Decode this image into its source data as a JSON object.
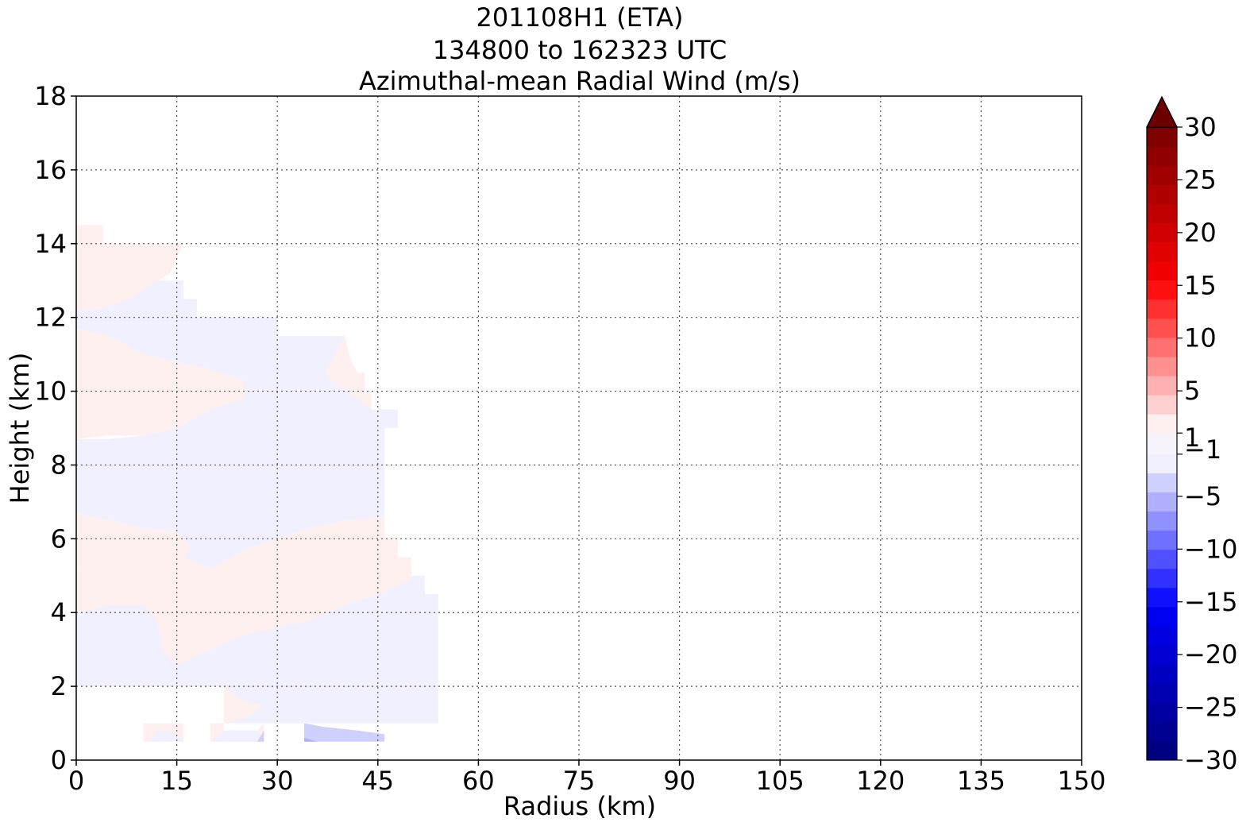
{
  "chart_data": {
    "type": "heatmap",
    "title_lines": [
      "201108H1 (ETA)",
      "134800 to 162323 UTC",
      "Azimuthal-mean Radial Wind (m/s)"
    ],
    "xlabel": "Radius (km)",
    "ylabel": "Height (km)",
    "xlim": [
      0,
      150
    ],
    "ylim": [
      0,
      18
    ],
    "xticks": [
      0,
      15,
      30,
      45,
      60,
      75,
      90,
      105,
      120,
      135,
      150
    ],
    "yticks": [
      0,
      2,
      4,
      6,
      8,
      10,
      12,
      14,
      16,
      18
    ],
    "grid": true,
    "colorbar": {
      "ticks": [
        30,
        25,
        20,
        15,
        10,
        5,
        1,
        -1,
        -5,
        -10,
        -15,
        -20,
        -25,
        -30
      ],
      "vmin": -30,
      "vmax": 30,
      "extend": "max",
      "levels_positive": [
        1,
        2,
        3,
        4,
        5,
        6,
        7,
        8,
        9,
        10,
        11,
        12,
        13,
        14,
        15,
        16,
        17,
        18,
        19,
        20,
        21,
        22,
        23,
        24,
        25,
        26,
        27,
        28,
        29,
        30
      ],
      "colors_positive": [
        "#fff0f0",
        "#ffd0d0",
        "#ffb0b0",
        "#ff9090",
        "#ff7070",
        "#ff5050",
        "#ff3030",
        "#ff1010",
        "#f00000",
        "#e00000",
        "#d00000",
        "#c00000",
        "#b00000",
        "#a00000",
        "#900000",
        "#800000"
      ],
      "colors_negative": [
        "#f0f0ff",
        "#d0d0ff",
        "#b0b0ff",
        "#9090ff",
        "#7070ff",
        "#5050ff",
        "#3030ff",
        "#1010ff",
        "#0000f0",
        "#0000e0",
        "#0000d0",
        "#0000c0",
        "#0000b0",
        "#0000a0",
        "#000090",
        "#000080"
      ]
    },
    "regions": [
      {
        "sign": "positive",
        "value": 0.5,
        "points": [
          [
            0,
            12.2
          ],
          [
            3,
            12.2
          ],
          [
            8,
            12.5
          ],
          [
            14,
            13.2
          ],
          [
            16,
            14.0
          ],
          [
            11,
            14.0
          ],
          [
            11,
            14.0
          ],
          [
            4,
            14.0
          ],
          [
            4,
            14.5
          ],
          [
            0,
            14.5
          ]
        ]
      },
      {
        "sign": "negative",
        "value": -0.5,
        "points": [
          [
            0,
            11.7
          ],
          [
            5,
            11.5
          ],
          [
            10,
            11.0
          ],
          [
            15,
            10.8
          ],
          [
            20,
            10.6
          ],
          [
            25,
            10.3
          ],
          [
            25,
            9.8
          ],
          [
            20,
            9.5
          ],
          [
            15,
            9.0
          ],
          [
            10,
            8.8
          ],
          [
            5,
            8.7
          ],
          [
            0,
            8.7
          ],
          [
            0,
            6.7
          ],
          [
            5,
            6.5
          ],
          [
            10,
            6.3
          ],
          [
            15,
            6.2
          ],
          [
            17,
            5.8
          ],
          [
            16,
            5.5
          ],
          [
            20,
            5.2
          ],
          [
            25,
            5.7
          ],
          [
            30,
            6.0
          ],
          [
            35,
            6.3
          ],
          [
            40,
            6.5
          ],
          [
            46,
            6.6
          ],
          [
            46,
            7.0
          ],
          [
            46,
            8.0
          ],
          [
            46,
            9.0
          ],
          [
            48,
            9.0
          ],
          [
            48,
            9.5
          ],
          [
            44,
            9.5
          ],
          [
            44,
            10.0
          ],
          [
            43,
            10.0
          ],
          [
            43,
            10.5
          ],
          [
            42,
            10.5
          ],
          [
            41,
            10.8
          ],
          [
            40,
            11.5
          ],
          [
            30,
            11.5
          ],
          [
            30,
            12.0
          ],
          [
            18,
            12.0
          ],
          [
            18,
            12.5
          ],
          [
            16,
            12.5
          ],
          [
            16,
            13.0
          ],
          [
            12,
            13.0
          ],
          [
            8,
            12.5
          ],
          [
            3,
            12.2
          ],
          [
            0,
            12.2
          ]
        ]
      },
      {
        "sign": "positive",
        "value": 0.5,
        "points": [
          [
            0,
            8.7
          ],
          [
            5,
            8.8
          ],
          [
            10,
            8.8
          ],
          [
            15,
            9.0
          ],
          [
            20,
            9.5
          ],
          [
            25,
            9.8
          ],
          [
            25,
            10.3
          ],
          [
            20,
            10.6
          ],
          [
            15,
            10.8
          ],
          [
            10,
            11.0
          ],
          [
            5,
            11.5
          ],
          [
            0,
            11.7
          ]
        ]
      },
      {
        "sign": "positive",
        "value": 0.5,
        "points": [
          [
            40,
            11.5
          ],
          [
            41,
            10.8
          ],
          [
            42,
            10.5
          ],
          [
            43,
            10.5
          ],
          [
            43,
            10.0
          ],
          [
            44,
            10.0
          ],
          [
            44,
            9.5
          ],
          [
            44,
            9.5
          ],
          [
            42,
            9.8
          ],
          [
            40,
            10.0
          ],
          [
            37,
            10.5
          ]
        ]
      },
      {
        "sign": "positive",
        "value": 0.5,
        "points": [
          [
            0,
            5.3
          ],
          [
            3,
            5.1
          ],
          [
            6,
            5.3
          ],
          [
            9,
            4.9
          ],
          [
            12,
            5.0
          ],
          [
            15,
            5.0
          ],
          [
            17,
            5.8
          ],
          [
            15,
            6.2
          ],
          [
            10,
            6.3
          ],
          [
            5,
            6.5
          ],
          [
            0,
            6.7
          ]
        ]
      },
      {
        "sign": "positive",
        "value": 0.5,
        "points": [
          [
            0,
            4.0
          ],
          [
            5,
            4.2
          ],
          [
            10,
            4.2
          ],
          [
            12,
            3.8
          ],
          [
            13,
            2.9
          ],
          [
            15,
            2.6
          ],
          [
            20,
            3.0
          ],
          [
            25,
            3.4
          ],
          [
            30,
            3.6
          ],
          [
            35,
            3.8
          ],
          [
            40,
            4.2
          ],
          [
            45,
            4.5
          ],
          [
            50,
            4.9
          ],
          [
            50,
            5.5
          ],
          [
            48,
            5.5
          ],
          [
            48,
            6.0
          ],
          [
            46,
            6.0
          ],
          [
            46,
            6.6
          ],
          [
            40,
            6.5
          ],
          [
            35,
            6.3
          ],
          [
            30,
            6.0
          ],
          [
            25,
            5.7
          ],
          [
            20,
            5.2
          ],
          [
            16,
            5.5
          ],
          [
            17,
            5.8
          ],
          [
            15,
            5.0
          ],
          [
            12,
            5.0
          ],
          [
            9,
            4.9
          ],
          [
            6,
            5.3
          ],
          [
            3,
            5.1
          ],
          [
            0,
            5.3
          ]
        ]
      },
      {
        "sign": "negative",
        "value": -0.5,
        "points": [
          [
            0,
            2.0
          ],
          [
            15,
            2.0
          ],
          [
            15,
            2.0
          ],
          [
            22,
            2.0
          ],
          [
            22,
            1.0
          ],
          [
            54,
            1.0
          ],
          [
            54,
            4.5
          ],
          [
            52,
            4.5
          ],
          [
            52,
            5.0
          ],
          [
            50,
            5.0
          ],
          [
            50,
            4.9
          ],
          [
            45,
            4.5
          ],
          [
            40,
            4.2
          ],
          [
            35,
            3.8
          ],
          [
            30,
            3.6
          ],
          [
            25,
            3.4
          ],
          [
            20,
            3.0
          ],
          [
            15,
            2.6
          ],
          [
            13,
            2.9
          ],
          [
            12,
            3.8
          ],
          [
            10,
            4.2
          ],
          [
            5,
            4.2
          ],
          [
            0,
            4.0
          ]
        ]
      },
      {
        "sign": "positive",
        "value": 0.5,
        "points": [
          [
            22,
            2.0
          ],
          [
            25,
            1.6
          ],
          [
            28,
            1.5
          ],
          [
            26,
            1.2
          ],
          [
            22,
            1.0
          ]
        ]
      },
      {
        "sign": "positive",
        "value": 0.5,
        "points": [
          [
            10,
            0.5
          ],
          [
            10,
            1.0
          ],
          [
            16,
            1.0
          ],
          [
            16,
            0.5
          ]
        ]
      },
      {
        "sign": "negative",
        "value": -0.5,
        "points": [
          [
            11,
            0.5
          ],
          [
            12,
            0.8
          ],
          [
            14,
            0.8
          ],
          [
            16,
            0.5
          ]
        ]
      },
      {
        "sign": "positive",
        "value": 0.5,
        "points": [
          [
            20,
            0.5
          ],
          [
            20,
            1.0
          ],
          [
            22,
            1.0
          ],
          [
            22,
            0.8
          ],
          [
            27,
            0.8
          ],
          [
            28,
            1.0
          ],
          [
            28,
            0.5
          ]
        ]
      },
      {
        "sign": "negative",
        "value": -0.5,
        "points": [
          [
            20,
            0.5
          ],
          [
            22,
            0.8
          ],
          [
            27,
            0.8
          ],
          [
            28,
            0.5
          ]
        ]
      },
      {
        "sign": "negative",
        "value": -2.5,
        "points": [
          [
            27,
            0.5
          ],
          [
            28,
            0.8
          ],
          [
            28,
            0.5
          ]
        ]
      },
      {
        "sign": "negative",
        "value": -2.5,
        "points": [
          [
            34,
            0.5
          ],
          [
            34,
            1.0
          ],
          [
            37,
            0.9
          ],
          [
            42,
            0.8
          ],
          [
            46,
            0.7
          ],
          [
            46,
            0.5
          ]
        ]
      },
      {
        "sign": "negative",
        "value": -4.5,
        "points": [
          [
            34,
            0.5
          ],
          [
            36,
            0.5
          ],
          [
            34,
            0.6
          ]
        ]
      }
    ]
  }
}
